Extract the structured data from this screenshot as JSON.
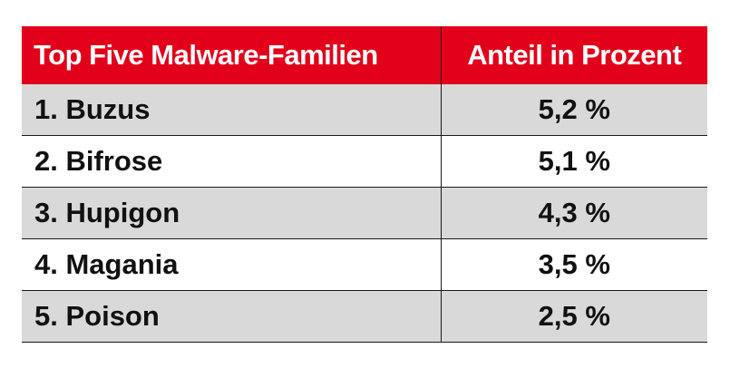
{
  "table": {
    "header": {
      "col1": "Top Five Malware-Familien",
      "col2": "Anteil in Prozent"
    },
    "rows": [
      {
        "name": "1. Buzus",
        "share": "5,2 %"
      },
      {
        "name": "2. Bifrose",
        "share": "5,1 %"
      },
      {
        "name": "3. Hupigon",
        "share": "4,3 %"
      },
      {
        "name": "4. Magania",
        "share": "3,5 %"
      },
      {
        "name": "5. Poison",
        "share": "2,5 %"
      }
    ]
  },
  "colors": {
    "header_background": "#e2001a",
    "row_shade": "#d9d9d9"
  }
}
